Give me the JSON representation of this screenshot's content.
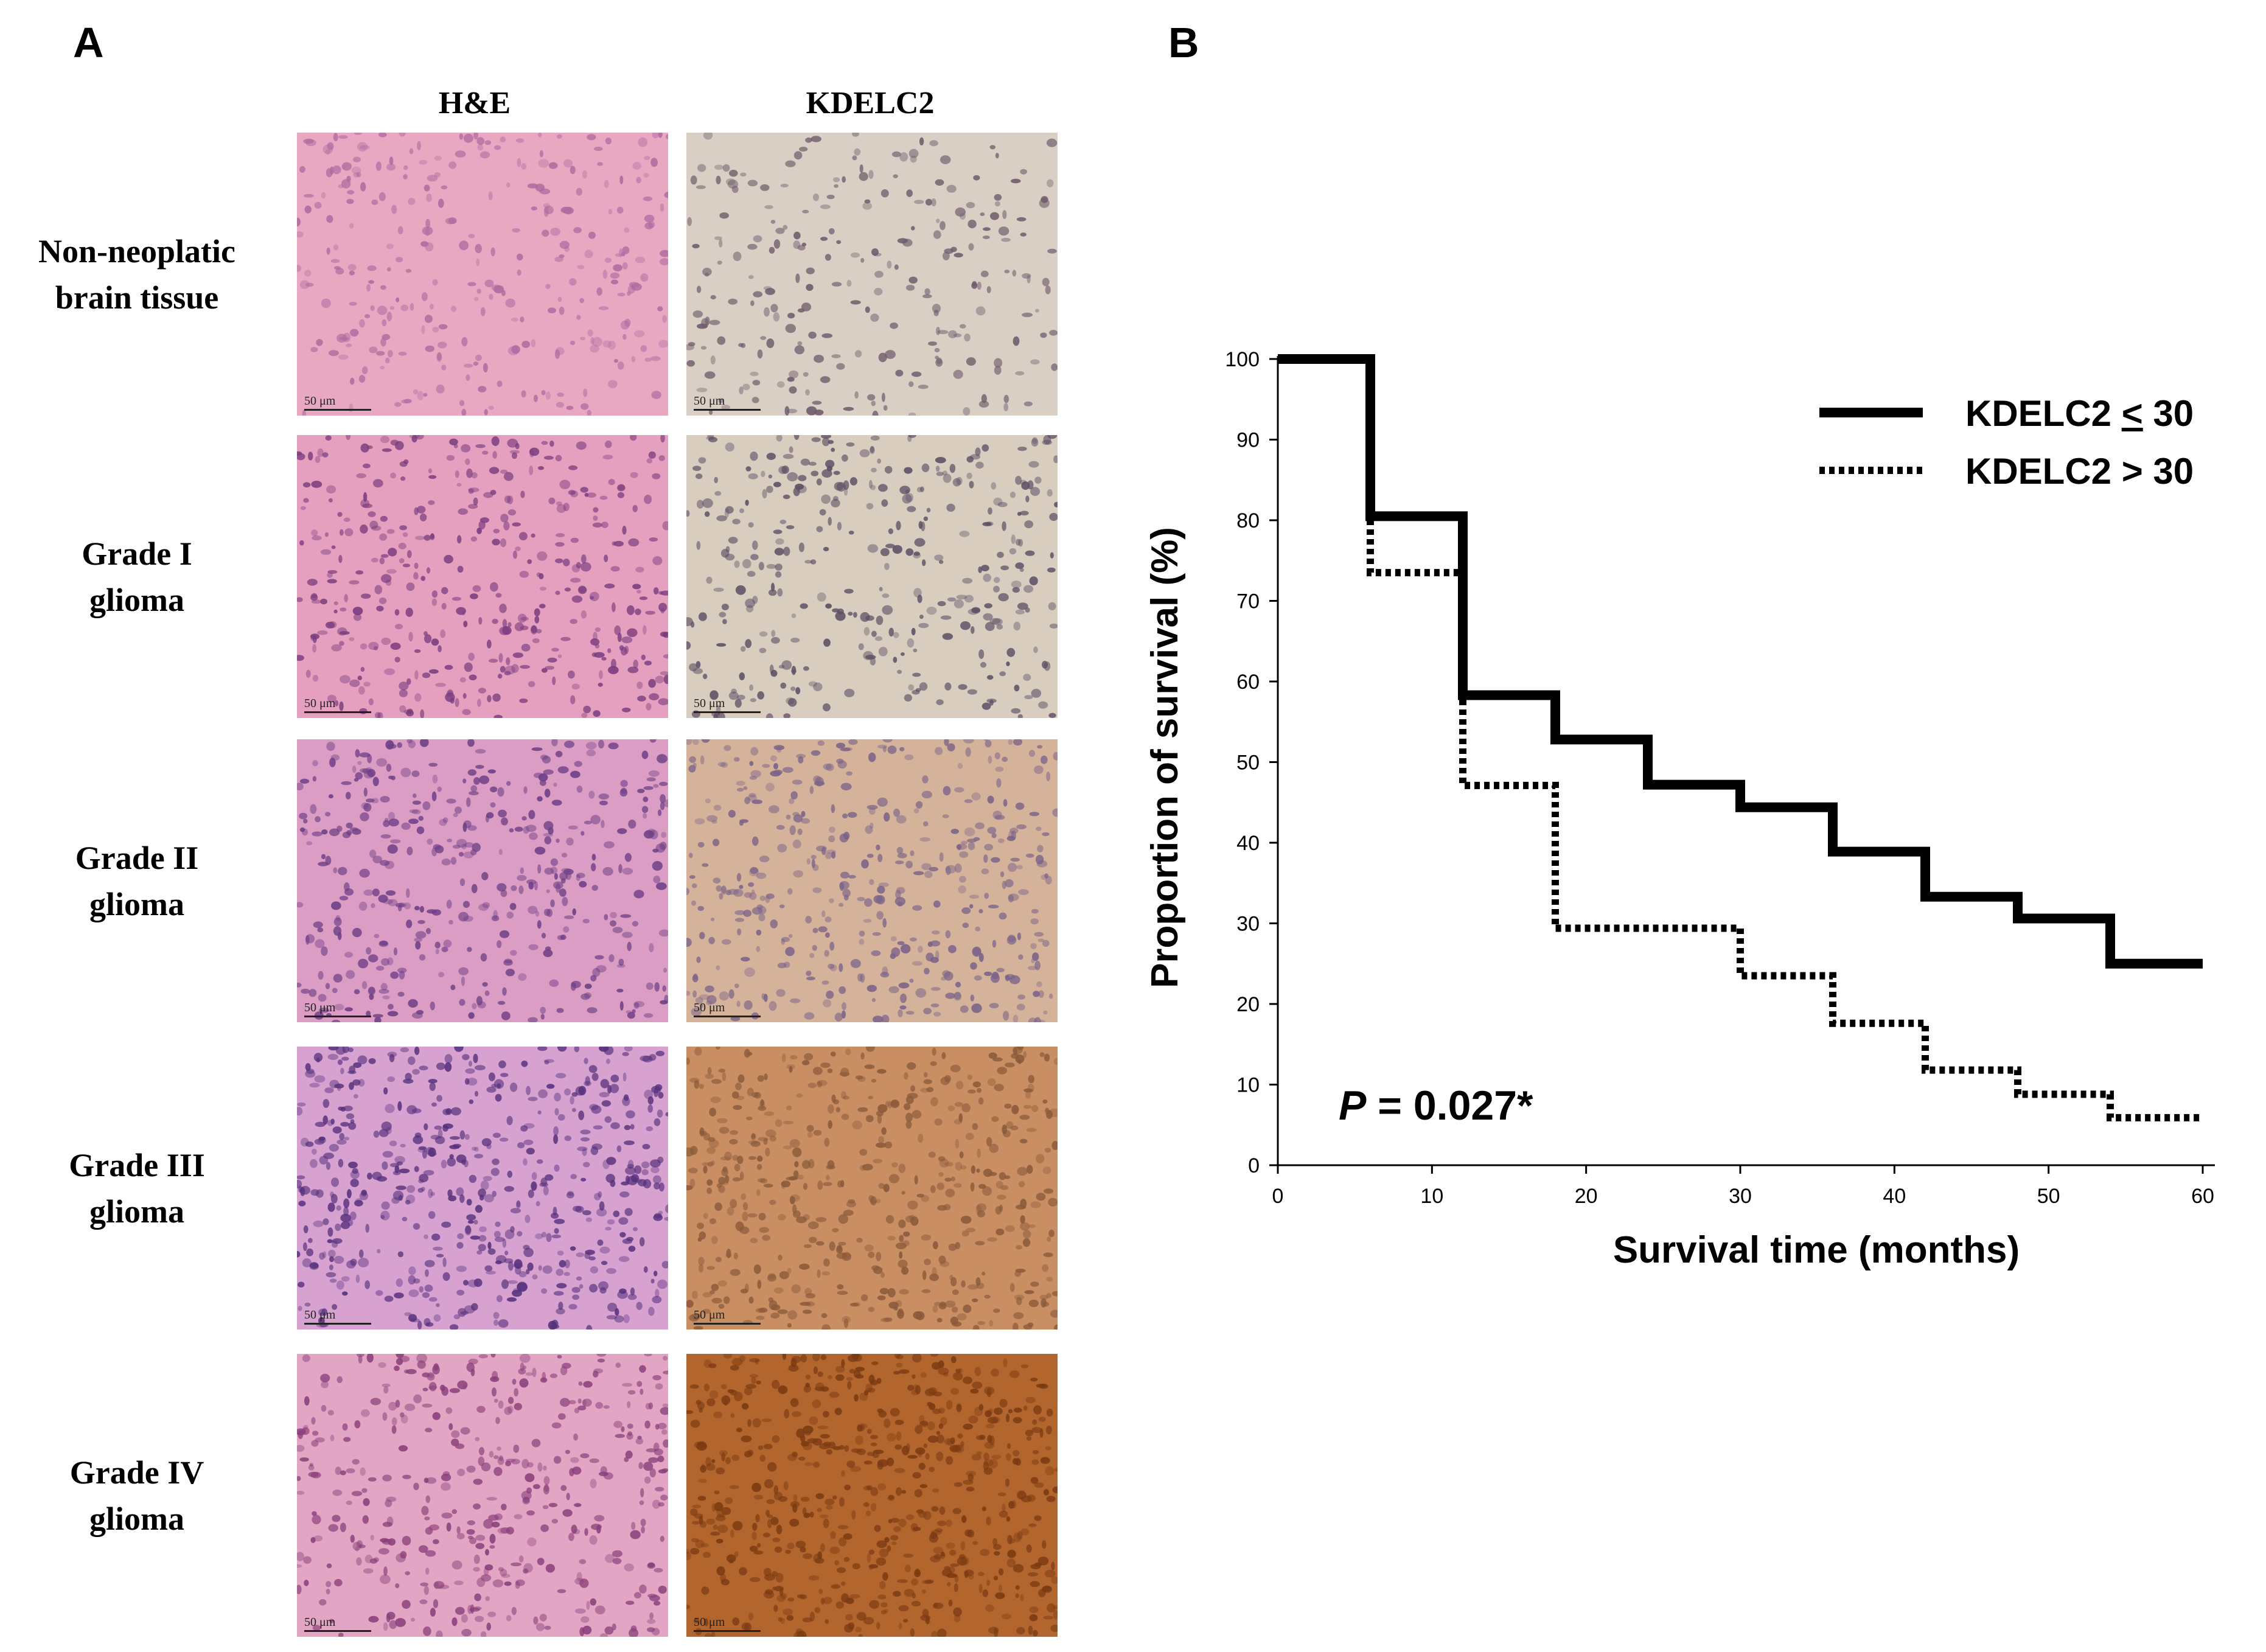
{
  "panel_a": {
    "letter": "A",
    "columns": [
      "H&E",
      "KDELC2"
    ],
    "rows": [
      {
        "line1": "Non-neoplatic",
        "line2": "brain tissue",
        "he_color": "#e9a8c2",
        "he_dots": "#b06aa0",
        "kd_color": "#d9cfc4",
        "kd_dots": "#6e5a6a",
        "he_density": 0.35,
        "kd_density": 0.25
      },
      {
        "line1": "Grade I",
        "line2": "glioma",
        "he_color": "#e6a0bf",
        "he_dots": "#7a3c7e",
        "kd_color": "#d8cdbf",
        "kd_dots": "#5d4d63",
        "he_density": 0.55,
        "kd_density": 0.45
      },
      {
        "line1": "Grade II",
        "line2": "glioma",
        "he_color": "#dc9dc4",
        "he_dots": "#6d3f86",
        "kd_color": "#d4b39a",
        "kd_dots": "#7a6288",
        "he_density": 0.6,
        "kd_density": 0.6
      },
      {
        "line1": "Grade III",
        "line2": "glioma",
        "he_color": "#d8a2d0",
        "he_dots": "#55307c",
        "kd_color": "#c98e62",
        "kd_dots": "#8a5a3a",
        "he_density": 0.85,
        "kd_density": 0.75
      },
      {
        "line1": "Grade IV",
        "line2": "glioma",
        "he_color": "#e2a6c4",
        "he_dots": "#8a3f7a",
        "kd_color": "#b2652c",
        "kd_dots": "#7a3a12",
        "he_density": 0.6,
        "kd_density": 0.95
      }
    ],
    "scale_bar": "50 μm"
  },
  "panel_b": {
    "letter": "B"
  },
  "chart_data": {
    "type": "line",
    "step": true,
    "xlabel": "Survival time (months)",
    "ylabel": "Proportion of survival (%)",
    "xlim": [
      0,
      60
    ],
    "ylim": [
      0,
      100
    ],
    "xticks": [
      0,
      10,
      20,
      30,
      40,
      50,
      60
    ],
    "yticks": [
      0,
      10,
      20,
      30,
      40,
      50,
      60,
      70,
      80,
      90,
      100
    ],
    "legend_position": "top-right",
    "annotation": {
      "p_label": "P",
      "p_value": " = 0.027*"
    },
    "series": [
      {
        "name": "KDELC2 < 30",
        "name_parts": [
          "KDELC2 ",
          "<",
          " 30"
        ],
        "style": "solid",
        "color": "#000000",
        "x": [
          0,
          6,
          12,
          18,
          24,
          30,
          36,
          42,
          48,
          54,
          60
        ],
        "y": [
          100,
          80.5,
          58.3,
          52.8,
          47.2,
          44.4,
          38.9,
          33.3,
          30.6,
          25.0,
          25.0
        ]
      },
      {
        "name": "KDELC2 > 30",
        "style": "dotted",
        "color": "#000000",
        "x": [
          0,
          6,
          12,
          18,
          30,
          36,
          42,
          48,
          54,
          60
        ],
        "y": [
          100,
          73.5,
          47.1,
          29.4,
          23.5,
          17.6,
          11.8,
          8.8,
          5.9,
          5.9
        ]
      }
    ]
  }
}
